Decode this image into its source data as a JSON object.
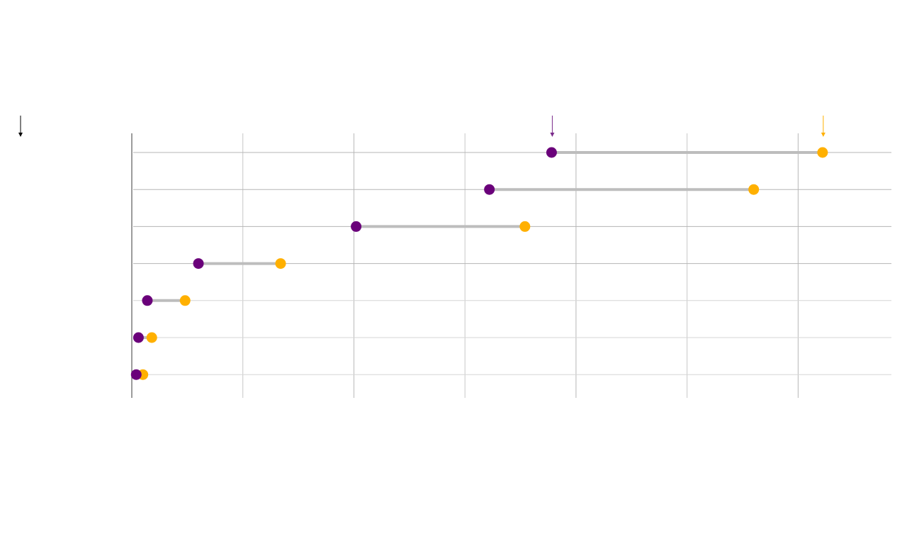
{
  "chart_data": {
    "type": "dumbbell",
    "title": "",
    "xlabel": "",
    "ylabel": "",
    "xlim": [
      0,
      6.84
    ],
    "grid": true,
    "gridlines_x": [
      0,
      1,
      2,
      3,
      4,
      5,
      6
    ],
    "categories": [
      "",
      "",
      "",
      "",
      "",
      "",
      ""
    ],
    "series": [
      {
        "color": "#6a007a",
        "values": [
          3.78,
          3.22,
          2.02,
          0.6,
          0.14,
          0.06,
          0.04
        ]
      },
      {
        "color": "#ffb000",
        "values": [
          6.22,
          5.6,
          3.54,
          1.34,
          0.48,
          0.18,
          0.1
        ]
      }
    ],
    "connector_color": "#bdbdbd",
    "markers": {
      "row_marker_color": "#000000",
      "start_marker_color": "#7a2a8a",
      "end_marker_color": "#ffb000"
    }
  }
}
